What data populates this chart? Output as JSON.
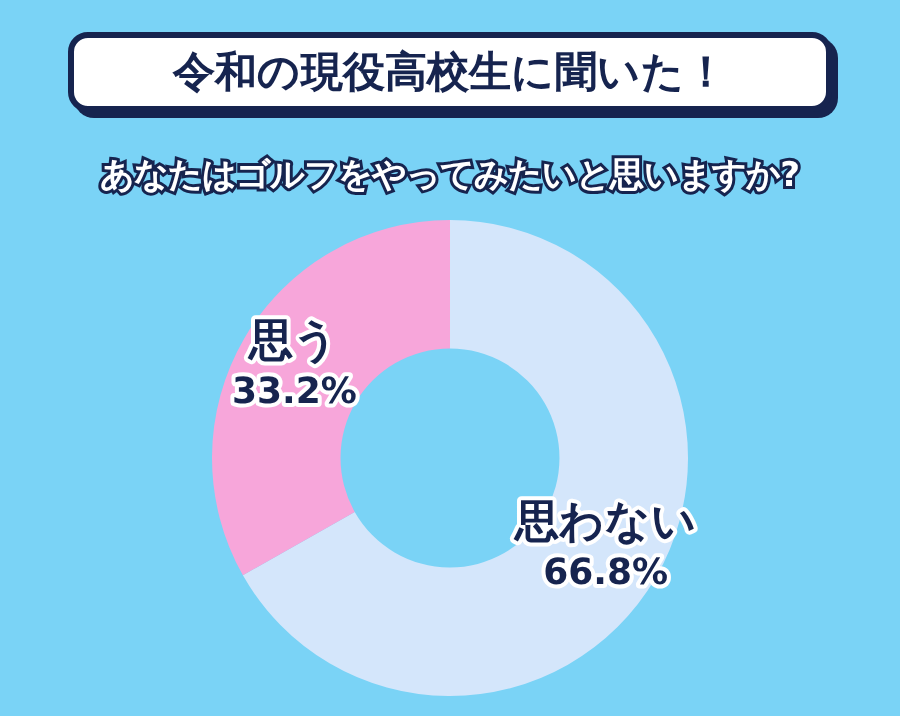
{
  "chart_data": {
    "type": "donut",
    "title": "令和の現役高校生に聞いた！",
    "subtitle": "あなたはゴルフをやってみたいと思いますか?",
    "categories": [
      "思わない",
      "思う"
    ],
    "values": [
      66.8,
      33.2
    ],
    "colors": [
      "#d4e6fb",
      "#f7a6da"
    ],
    "value_labels": [
      "66.8%",
      "33.2%"
    ],
    "legend": false
  }
}
